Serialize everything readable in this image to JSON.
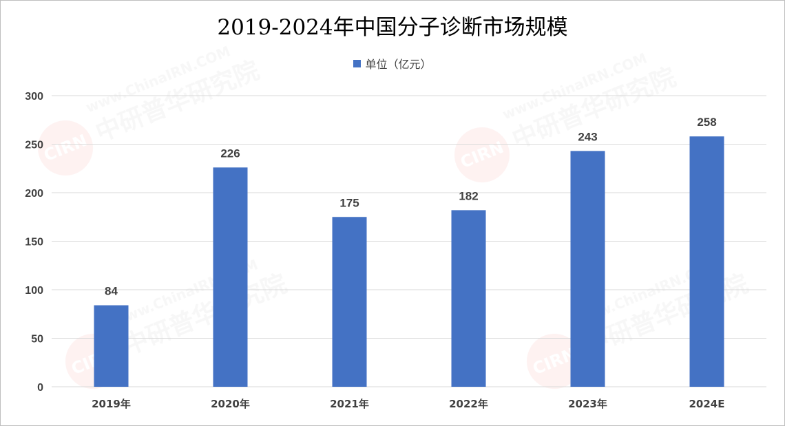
{
  "chart_data": {
    "type": "bar",
    "title": "2019-2024年中国分子诊断市场规模",
    "categories": [
      "2019年",
      "2020年",
      "2021年",
      "2022年",
      "2023年",
      "2024E"
    ],
    "series": [
      {
        "name": "单位（亿元）",
        "values": [
          84,
          226,
          175,
          182,
          243,
          258
        ]
      }
    ],
    "data_labels": [
      "84",
      "226",
      "175",
      "182",
      "243",
      "258"
    ],
    "y_ticks": [
      0,
      50,
      100,
      150,
      200,
      250,
      300
    ],
    "ylim": [
      0,
      300
    ],
    "grid": true,
    "legend_position": "top-center"
  },
  "colors": {
    "bar": "#4472C4",
    "grid": "#d9d9d9",
    "axis_text": "#404040"
  }
}
